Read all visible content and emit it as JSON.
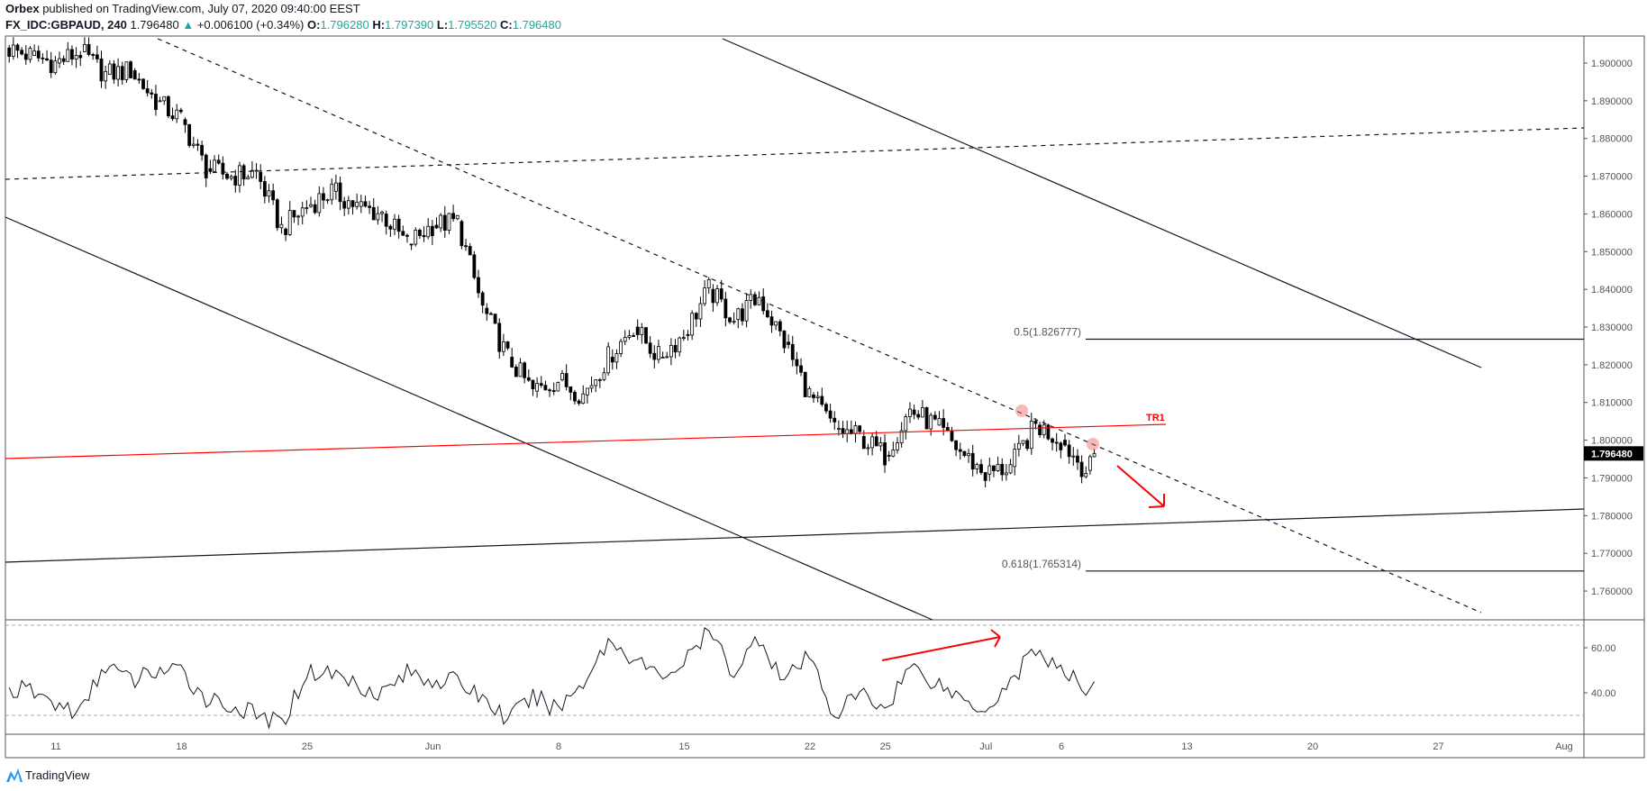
{
  "header": {
    "author": "Orbex",
    "published_text": "published on TradingView.com, July 07, 2020 09:40:00 EEST",
    "symbol": "FX_IDC:GBPAUD, 240",
    "last": "1.796480",
    "change": "+0.006100 (+0.34%)",
    "o_label": "O:",
    "o": "1.796280",
    "h_label": "H:",
    "h": "1.797390",
    "l_label": "L:",
    "l": "1.795520",
    "c_label": "C:",
    "c": "1.796480",
    "up_color": "#26a69a"
  },
  "footer": {
    "brand": "TradingView",
    "brand_color": "#2196f3"
  },
  "chart_data": [
    {
      "type": "candlestick",
      "symbol": "FX_IDC:GBPAUD",
      "interval": "240",
      "ylim": [
        1.753,
        1.908
      ],
      "y_ticks": [
        "1.900000",
        "1.890000",
        "1.880000",
        "1.870000",
        "1.860000",
        "1.850000",
        "1.840000",
        "1.830000",
        "1.820000",
        "1.810000",
        "1.800000",
        "1.790000",
        "1.780000",
        "1.770000",
        "1.760000"
      ],
      "last_price_label": "1.796480",
      "x_ticks": [
        {
          "label": "11",
          "date": "2020-05-11"
        },
        {
          "label": "18",
          "date": "2020-05-18"
        },
        {
          "label": "25",
          "date": "2020-05-25"
        },
        {
          "label": "Jun",
          "date": "2020-06-01"
        },
        {
          "label": "8",
          "date": "2020-06-08"
        },
        {
          "label": "15",
          "date": "2020-06-15"
        },
        {
          "label": "22",
          "date": "2020-06-22"
        },
        {
          "label": "25",
          "date": "2020-06-25"
        },
        {
          "label": "Jul",
          "date": "2020-07-01"
        },
        {
          "label": "6",
          "date": "2020-07-06"
        },
        {
          "label": "13",
          "date": "2020-07-13"
        },
        {
          "label": "20",
          "date": "2020-07-20"
        },
        {
          "label": "27",
          "date": "2020-07-27"
        },
        {
          "label": "Aug",
          "date": "2020-08-03"
        }
      ],
      "daily_close_approx": [
        [
          "2020-05-07",
          1.902
        ],
        [
          "2020-05-08",
          1.9
        ],
        [
          "2020-05-11",
          1.903
        ],
        [
          "2020-05-12",
          1.897
        ],
        [
          "2020-05-13",
          1.898
        ],
        [
          "2020-05-14",
          1.89
        ],
        [
          "2020-05-15",
          1.885
        ],
        [
          "2020-05-18",
          1.872
        ],
        [
          "2020-05-19",
          1.87
        ],
        [
          "2020-05-20",
          1.871
        ],
        [
          "2020-05-21",
          1.856
        ],
        [
          "2020-05-22",
          1.862
        ],
        [
          "2020-05-25",
          1.866
        ],
        [
          "2020-05-26",
          1.862
        ],
        [
          "2020-05-27",
          1.86
        ],
        [
          "2020-05-28",
          1.852
        ],
        [
          "2020-05-29",
          1.857
        ],
        [
          "2020-06-01",
          1.858
        ],
        [
          "2020-06-02",
          1.835
        ],
        [
          "2020-06-03",
          1.822
        ],
        [
          "2020-06-04",
          1.813
        ],
        [
          "2020-06-05",
          1.816
        ],
        [
          "2020-06-08",
          1.812
        ],
        [
          "2020-06-09",
          1.822
        ],
        [
          "2020-06-10",
          1.83
        ],
        [
          "2020-06-11",
          1.822
        ],
        [
          "2020-06-12",
          1.828
        ],
        [
          "2020-06-15",
          1.84
        ],
        [
          "2020-06-16",
          1.832
        ],
        [
          "2020-06-17",
          1.838
        ],
        [
          "2020-06-18",
          1.826
        ],
        [
          "2020-06-19",
          1.812
        ],
        [
          "2020-06-22",
          1.803
        ],
        [
          "2020-06-23",
          1.801
        ],
        [
          "2020-06-24",
          1.796
        ],
        [
          "2020-06-25",
          1.808
        ],
        [
          "2020-06-26",
          1.804
        ],
        [
          "2020-06-29",
          1.797
        ],
        [
          "2020-06-30",
          1.791
        ],
        [
          "2020-07-01",
          1.793
        ],
        [
          "2020-07-02",
          1.804
        ],
        [
          "2020-07-03",
          1.8
        ],
        [
          "2020-07-06",
          1.792
        ],
        [
          "2020-07-07",
          1.79648
        ]
      ],
      "annotations": {
        "tr1_label": "TR1",
        "fib_05_label": "0.5(1.826777)",
        "fib_0618_label": "0.618(1.765314)",
        "fib_05": 1.826777,
        "fib_0618": 1.765314,
        "annotation_color": "#ff0000"
      }
    },
    {
      "type": "line",
      "indicator": "RSI",
      "ylim": [
        28,
        72
      ],
      "bands": [
        70,
        30
      ],
      "y_ticks": [
        "60.00",
        "40.00"
      ],
      "daily_value_approx": [
        [
          "2020-05-07",
          41
        ],
        [
          "2020-05-08",
          35
        ],
        [
          "2020-05-11",
          31
        ],
        [
          "2020-05-12",
          53
        ],
        [
          "2020-05-13",
          45
        ],
        [
          "2020-05-14",
          50
        ],
        [
          "2020-05-15",
          49
        ],
        [
          "2020-05-18",
          38
        ],
        [
          "2020-05-19",
          34
        ],
        [
          "2020-05-20",
          30
        ],
        [
          "2020-05-21",
          26
        ],
        [
          "2020-05-22",
          49
        ],
        [
          "2020-05-25",
          49
        ],
        [
          "2020-05-26",
          44
        ],
        [
          "2020-05-27",
          40
        ],
        [
          "2020-05-28",
          49
        ],
        [
          "2020-05-29",
          46
        ],
        [
          "2020-06-01",
          45
        ],
        [
          "2020-06-02",
          38
        ],
        [
          "2020-06-03",
          28
        ],
        [
          "2020-06-04",
          38
        ],
        [
          "2020-06-05",
          33
        ],
        [
          "2020-06-08",
          45
        ],
        [
          "2020-06-09",
          63
        ],
        [
          "2020-06-10",
          56
        ],
        [
          "2020-06-11",
          47
        ],
        [
          "2020-06-12",
          53
        ],
        [
          "2020-06-15",
          67
        ],
        [
          "2020-06-16",
          49
        ],
        [
          "2020-06-17",
          65
        ],
        [
          "2020-06-18",
          45
        ],
        [
          "2020-06-19",
          56
        ],
        [
          "2020-06-22",
          30
        ],
        [
          "2020-06-23",
          40
        ],
        [
          "2020-06-24",
          33
        ],
        [
          "2020-06-25",
          52
        ],
        [
          "2020-06-26",
          45
        ],
        [
          "2020-06-29",
          38
        ],
        [
          "2020-06-30",
          33
        ],
        [
          "2020-07-01",
          45
        ],
        [
          "2020-07-02",
          60
        ],
        [
          "2020-07-03",
          49
        ],
        [
          "2020-07-06",
          42
        ],
        [
          "2020-07-07",
          51
        ]
      ]
    }
  ]
}
